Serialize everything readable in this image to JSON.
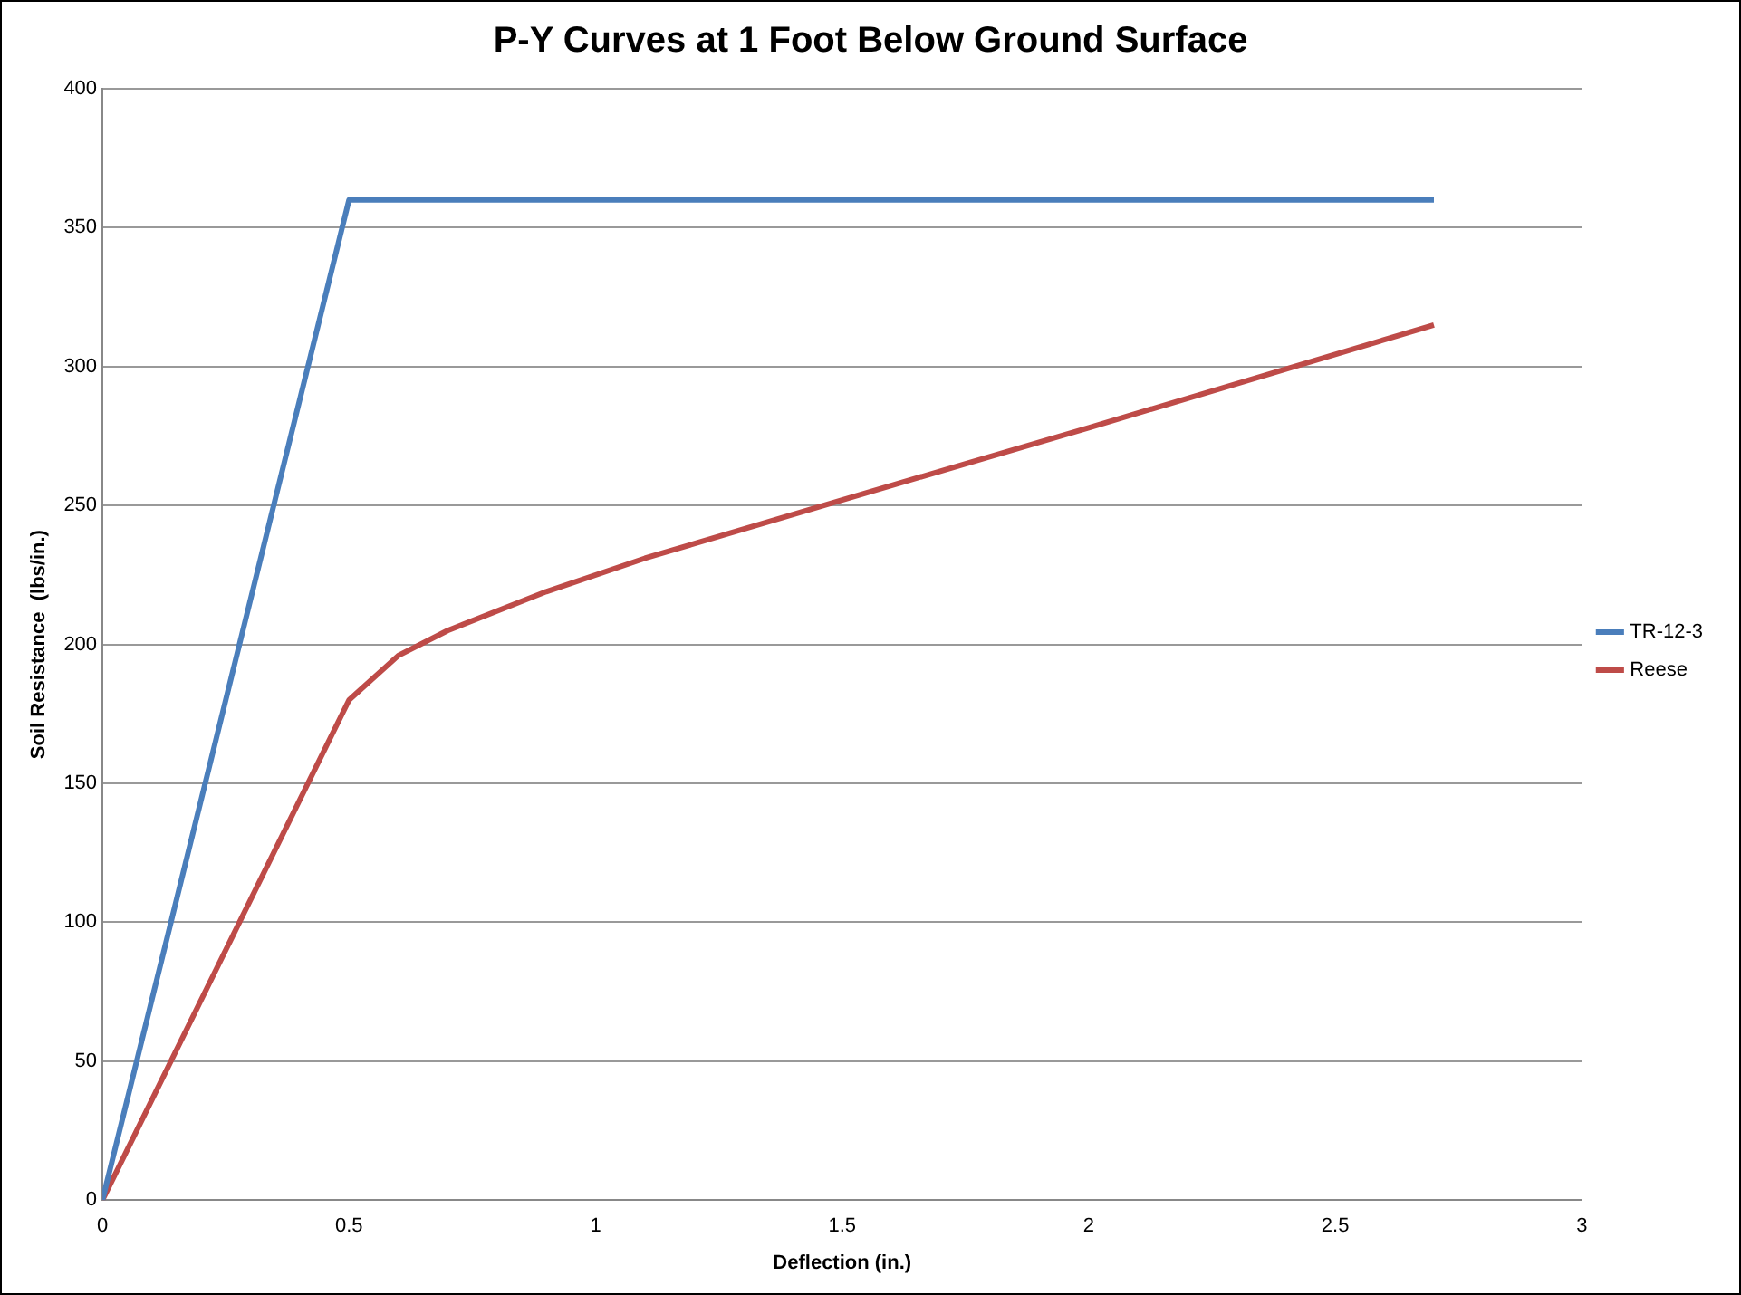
{
  "chart_data": {
    "type": "line",
    "title": "P-Y Curves at 1 Foot Below Ground Surface",
    "xlabel": "Deflection (in.)",
    "ylabel": "Soil Resistance  (lbs/in.)",
    "xlim": [
      0,
      3
    ],
    "xticks": [
      0,
      0.5,
      1,
      1.5,
      2,
      2.5,
      3
    ],
    "ylim": [
      0,
      400
    ],
    "yticks": [
      0,
      50,
      100,
      150,
      200,
      250,
      300,
      350,
      400
    ],
    "grid": "y",
    "legend": "right",
    "marker": "none",
    "line_style": "solid",
    "series": [
      {
        "name": "TR-12-3",
        "color": "#4a7ebb",
        "x": [
          0,
          0.5,
          2.7
        ],
        "values": [
          0,
          360,
          360
        ]
      },
      {
        "name": "Reese",
        "color": "#be4b48",
        "x": [
          0,
          0.5,
          0.6,
          0.7,
          0.9,
          1.1,
          1.5,
          2,
          2.7
        ],
        "values": [
          0,
          180,
          196,
          205,
          219,
          231,
          252,
          278,
          315
        ]
      }
    ]
  }
}
